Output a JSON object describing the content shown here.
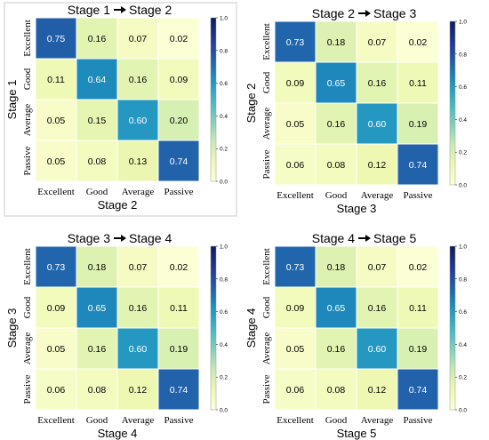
{
  "colors": {
    "low": "#ffffd9",
    "mid": "#41b6c4",
    "high": "#081d58"
  },
  "chart_data": [
    {
      "type": "heatmap",
      "title_left": "Stage 1",
      "title_right": "Stage 2",
      "xlabel": "Stage 2",
      "ylabel": "Stage 1",
      "categories": [
        "Excellent",
        "Good",
        "Average",
        "Passive"
      ],
      "values": [
        [
          0.75,
          0.16,
          0.07,
          0.02
        ],
        [
          0.11,
          0.64,
          0.16,
          0.09
        ],
        [
          0.05,
          0.15,
          0.6,
          0.2
        ],
        [
          0.05,
          0.08,
          0.13,
          0.74
        ]
      ],
      "display": [
        [
          "0.75",
          "0.16",
          "0.07",
          "0.02"
        ],
        [
          "0.11",
          "0.64",
          "0.16",
          "0.09"
        ],
        [
          "0.05",
          "0.15",
          "0.60",
          "0.20"
        ],
        [
          "0.05",
          "0.08",
          "0.13",
          "0.74"
        ]
      ],
      "colorbar": {
        "range": [
          0,
          1
        ],
        "ticks": [
          "0.0",
          "0.2",
          "0.4",
          "0.6",
          "0.8",
          "1.0"
        ]
      }
    },
    {
      "type": "heatmap",
      "title_left": "Stage 2",
      "title_right": "Stage 3",
      "xlabel": "Stage 3",
      "ylabel": "Stage 2",
      "categories": [
        "Excellent",
        "Good",
        "Average",
        "Passive"
      ],
      "values": [
        [
          0.73,
          0.18,
          0.07,
          0.02
        ],
        [
          0.09,
          0.65,
          0.16,
          0.11
        ],
        [
          0.05,
          0.16,
          0.6,
          0.19
        ],
        [
          0.06,
          0.08,
          0.12,
          0.74
        ]
      ],
      "display": [
        [
          "0.73",
          "0.18",
          "0.07",
          "0.02"
        ],
        [
          "0.09",
          "0.65",
          "0.16",
          "0.11"
        ],
        [
          "0.05",
          "0.16",
          "0.60",
          "0.19"
        ],
        [
          "0.06",
          "0.08",
          "0.12",
          "0.74"
        ]
      ],
      "colorbar": {
        "range": [
          0,
          1
        ],
        "ticks": [
          "0.0",
          "0.2",
          "0.4",
          "0.6",
          "0.8",
          "1.0"
        ]
      }
    },
    {
      "type": "heatmap",
      "title_left": "Stage 3",
      "title_right": "Stage 4",
      "xlabel": "Stage 4",
      "ylabel": "Stage 3",
      "categories": [
        "Excellent",
        "Good",
        "Average",
        "Passive"
      ],
      "values": [
        [
          0.73,
          0.18,
          0.07,
          0.02
        ],
        [
          0.09,
          0.65,
          0.16,
          0.11
        ],
        [
          0.05,
          0.16,
          0.6,
          0.19
        ],
        [
          0.06,
          0.08,
          0.12,
          0.74
        ]
      ],
      "display": [
        [
          "0.73",
          "0.18",
          "0.07",
          "0.02"
        ],
        [
          "0.09",
          "0.65",
          "0.16",
          "0.11"
        ],
        [
          "0.05",
          "0.16",
          "0.60",
          "0.19"
        ],
        [
          "0.06",
          "0.08",
          "0.12",
          "0.74"
        ]
      ],
      "colorbar": {
        "range": [
          0,
          1
        ],
        "ticks": [
          "0.0",
          "0.2",
          "0.4",
          "0.6",
          "0.8",
          "1.0"
        ]
      }
    },
    {
      "type": "heatmap",
      "title_left": "Stage 4",
      "title_right": "Stage 5",
      "xlabel": "Stage 5",
      "ylabel": "Stage 4",
      "categories": [
        "Excellent",
        "Good",
        "Average",
        "Passive"
      ],
      "values": [
        [
          0.73,
          0.18,
          0.07,
          0.02
        ],
        [
          0.09,
          0.65,
          0.16,
          0.11
        ],
        [
          0.05,
          0.16,
          0.6,
          0.19
        ],
        [
          0.06,
          0.08,
          0.12,
          0.74
        ]
      ],
      "display": [
        [
          "0.73",
          "0.18",
          "0.07",
          "0.02"
        ],
        [
          "0.09",
          "0.65",
          "0.16",
          "0.11"
        ],
        [
          "0.05",
          "0.16",
          "0.60",
          "0.19"
        ],
        [
          "0.06",
          "0.08",
          "0.12",
          "0.74"
        ]
      ],
      "colorbar": {
        "range": [
          0,
          1
        ],
        "ticks": [
          "0.0",
          "0.2",
          "0.4",
          "0.6",
          "0.8",
          "1.0"
        ]
      }
    }
  ]
}
